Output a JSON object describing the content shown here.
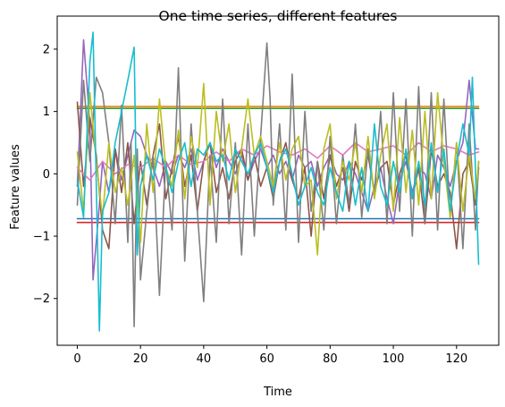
{
  "chart_data": {
    "type": "line",
    "title": "One time series, different features",
    "xlabel": "Time",
    "ylabel": "Feature values",
    "xlim": [
      -6.35,
      133.35
    ],
    "ylim": [
      -2.75,
      2.53
    ],
    "xticks": [
      0,
      20,
      40,
      60,
      80,
      100,
      120
    ],
    "yticks": [
      -2,
      -1,
      0,
      1,
      2
    ],
    "xtick_labels": [
      "0",
      "20",
      "40",
      "60",
      "80",
      "100",
      "120"
    ],
    "ytick_labels": [
      "−2",
      "−1",
      "0",
      "1",
      "2"
    ],
    "grid": false,
    "legend": "none",
    "series": [
      {
        "color": "#1f77b4",
        "x": [
          0,
          127
        ],
        "y": [
          -0.72,
          -0.72
        ]
      },
      {
        "color": "#ff7f0e",
        "x": [
          0,
          127
        ],
        "y": [
          1.08,
          1.08
        ]
      },
      {
        "color": "#2ca02c",
        "x": [
          0,
          127
        ],
        "y": [
          1.05,
          1.05
        ]
      },
      {
        "color": "#d62728",
        "x": [
          0,
          127
        ],
        "y": [
          -0.78,
          -0.78
        ]
      },
      {
        "color": "#9467bd",
        "x": [
          0,
          2,
          4,
          5,
          7,
          8,
          10,
          12,
          14,
          16,
          18,
          20,
          22,
          24,
          26,
          28,
          30,
          32,
          34,
          36,
          38,
          40,
          42,
          44,
          46,
          48,
          50,
          52,
          54,
          56,
          58,
          60,
          62,
          64,
          66,
          68,
          70,
          72,
          74,
          76,
          78,
          80,
          82,
          84,
          86,
          88,
          90,
          92,
          94,
          96,
          98,
          100,
          102,
          104,
          106,
          108,
          110,
          112,
          114,
          116,
          118,
          120,
          122,
          124,
          126,
          127
        ],
        "y": [
          -0.2,
          2.15,
          0.8,
          -1.7,
          -0.5,
          0.2,
          -0.3,
          0.4,
          -0.1,
          0.3,
          0.7,
          0.6,
          0.3,
          0.1,
          -0.2,
          0.2,
          0.0,
          0.3,
          0.1,
          0.4,
          -0.1,
          0.2,
          0.5,
          0.1,
          0.4,
          0.2,
          0.0,
          0.3,
          -0.1,
          0.2,
          0.4,
          0.1,
          0.3,
          0.0,
          0.2,
          -0.1,
          0.3,
          0.1,
          0.2,
          -0.2,
          0.1,
          0.3,
          0.0,
          -0.1,
          0.2,
          0.0,
          -0.3,
          -0.6,
          -0.2,
          0.1,
          -0.4,
          -0.8,
          -0.1,
          0.2,
          -0.3,
          0.1,
          0.0,
          -0.4,
          0.3,
          0.1,
          -0.2,
          0.2,
          0.5,
          1.5,
          0.4,
          0.4
        ]
      },
      {
        "color": "#8c564b",
        "x": [
          0,
          2,
          4,
          6,
          8,
          10,
          12,
          14,
          16,
          18,
          20,
          22,
          24,
          26,
          28,
          30,
          32,
          34,
          36,
          38,
          40,
          42,
          44,
          46,
          48,
          50,
          52,
          54,
          56,
          58,
          60,
          62,
          64,
          66,
          68,
          70,
          72,
          74,
          76,
          78,
          80,
          82,
          84,
          86,
          88,
          90,
          92,
          94,
          96,
          98,
          100,
          102,
          104,
          106,
          108,
          110,
          112,
          114,
          116,
          118,
          120,
          122,
          124,
          126,
          127
        ],
        "y": [
          1.15,
          -0.2,
          0.9,
          0.3,
          -0.9,
          -1.2,
          0.4,
          -0.3,
          0.5,
          -0.8,
          0.2,
          -0.5,
          0.3,
          0.8,
          -0.4,
          0.1,
          0.6,
          -0.2,
          0.3,
          -0.6,
          0.2,
          0.5,
          -0.3,
          0.1,
          -0.4,
          0.2,
          0.4,
          -0.1,
          0.3,
          -0.2,
          0.1,
          -0.4,
          0.2,
          0.5,
          -0.1,
          -0.4,
          0.1,
          -1.0,
          0.2,
          -0.4,
          0.3,
          -0.2,
          0.1,
          -0.6,
          0.2,
          -0.1,
          0.3,
          -0.3,
          0.1,
          0.2,
          -0.5,
          0.0,
          0.3,
          -0.4,
          0.1,
          -0.8,
          0.4,
          -0.2,
          0.0,
          -0.3,
          -1.2,
          0.0,
          0.2,
          -0.5,
          0.1
        ]
      },
      {
        "color": "#e377c2",
        "x": [
          0,
          4,
          8,
          12,
          16,
          20,
          24,
          28,
          32,
          36,
          40,
          44,
          48,
          52,
          56,
          60,
          64,
          68,
          72,
          76,
          80,
          84,
          88,
          92,
          96,
          100,
          104,
          108,
          112,
          116,
          120,
          124,
          127
        ],
        "y": [
          0.1,
          -0.1,
          0.2,
          0.0,
          0.15,
          0.1,
          0.25,
          0.1,
          0.3,
          0.15,
          0.2,
          0.35,
          0.2,
          0.4,
          0.3,
          0.45,
          0.35,
          0.3,
          0.4,
          0.25,
          0.45,
          0.3,
          0.5,
          0.35,
          0.4,
          0.45,
          0.3,
          0.5,
          0.35,
          0.45,
          0.4,
          0.3,
          0.35
        ]
      },
      {
        "color": "#7f7f7f",
        "x": [
          0,
          2,
          4,
          6,
          8,
          10,
          12,
          14,
          16,
          17,
          18,
          19,
          20,
          22,
          24,
          26,
          28,
          30,
          32,
          34,
          36,
          38,
          40,
          42,
          44,
          46,
          48,
          50,
          52,
          54,
          56,
          58,
          60,
          61,
          62,
          64,
          66,
          68,
          70,
          72,
          74,
          76,
          78,
          80,
          82,
          84,
          86,
          88,
          90,
          92,
          94,
          96,
          98,
          100,
          102,
          104,
          106,
          108,
          110,
          112,
          114,
          116,
          118,
          120,
          122,
          124,
          126,
          127
        ],
        "y": [
          -0.5,
          1.5,
          0.2,
          1.55,
          1.3,
          0.5,
          -0.8,
          1.1,
          -1.1,
          0.5,
          -2.45,
          0.4,
          -1.7,
          -0.6,
          0.3,
          -1.95,
          0.2,
          -0.9,
          1.7,
          -1.4,
          0.8,
          -0.6,
          -2.05,
          0.3,
          -1.1,
          1.2,
          -0.8,
          0.5,
          -1.3,
          0.8,
          -1.0,
          0.6,
          2.1,
          1.2,
          -0.5,
          0.8,
          -0.9,
          1.6,
          -1.1,
          1.0,
          -0.6,
          0.2,
          -0.9,
          0.6,
          -0.8,
          0.3,
          -0.5,
          0.8,
          -0.7,
          0.4,
          -0.3,
          1.0,
          -0.8,
          1.3,
          -0.6,
          1.2,
          -1.0,
          1.4,
          -0.8,
          1.3,
          -0.9,
          1.2,
          -0.7,
          0.5,
          -1.2,
          0.8,
          -0.9,
          0.2
        ]
      },
      {
        "color": "#bcbd22",
        "x": [
          0,
          2,
          4,
          6,
          8,
          10,
          12,
          14,
          16,
          18,
          20,
          22,
          24,
          26,
          28,
          30,
          32,
          34,
          36,
          38,
          40,
          42,
          44,
          46,
          48,
          50,
          52,
          54,
          56,
          58,
          60,
          62,
          64,
          66,
          68,
          70,
          72,
          74,
          76,
          78,
          80,
          82,
          84,
          86,
          88,
          90,
          92,
          94,
          96,
          98,
          100,
          102,
          104,
          106,
          108,
          110,
          112,
          114,
          116,
          118,
          120,
          122,
          124,
          126,
          127
        ],
        "y": [
          0.35,
          -0.6,
          1.3,
          0.2,
          -0.7,
          0.5,
          -0.3,
          0.1,
          -0.5,
          0.3,
          -1.1,
          0.8,
          -0.3,
          1.2,
          0.1,
          -0.2,
          0.7,
          -0.4,
          0.6,
          0.1,
          1.45,
          -0.5,
          1.0,
          0.2,
          0.8,
          -0.3,
          0.4,
          1.2,
          0.3,
          0.6,
          0.2,
          -0.2,
          0.5,
          -0.1,
          0.4,
          0.6,
          -0.2,
          -0.1,
          -1.3,
          0.4,
          0.8,
          -0.4,
          0.2,
          -0.1,
          0.5,
          -0.3,
          0.6,
          -0.4,
          0.3,
          0.8,
          -0.6,
          0.9,
          -0.3,
          0.7,
          -0.5,
          1.0,
          -0.4,
          1.3,
          0.2,
          -0.7,
          0.5,
          -0.6,
          0.3,
          -0.4,
          0.2
        ]
      },
      {
        "color": "#17becf",
        "x": [
          0,
          2,
          4,
          5,
          7,
          8,
          10,
          12,
          14,
          16,
          18,
          19,
          20,
          22,
          24,
          26,
          28,
          30,
          32,
          34,
          36,
          38,
          40,
          42,
          44,
          46,
          48,
          50,
          52,
          54,
          56,
          58,
          60,
          62,
          64,
          66,
          68,
          70,
          72,
          74,
          76,
          78,
          80,
          82,
          84,
          86,
          88,
          90,
          92,
          94,
          96,
          98,
          100,
          102,
          104,
          106,
          108,
          110,
          112,
          114,
          116,
          118,
          120,
          122,
          124,
          125,
          127
        ],
        "y": [
          -0.1,
          -0.7,
          1.8,
          2.27,
          -2.52,
          -0.6,
          -0.3,
          0.5,
          1.0,
          1.5,
          2.03,
          -1.3,
          -0.2,
          0.3,
          -0.1,
          0.4,
          0.1,
          -0.3,
          0.2,
          0.5,
          -0.2,
          0.4,
          0.3,
          0.5,
          0.2,
          0.3,
          -0.1,
          0.4,
          0.2,
          0.0,
          0.3,
          0.5,
          0.1,
          -0.3,
          0.2,
          0.4,
          0.0,
          -0.5,
          -0.2,
          0.1,
          -0.3,
          -0.5,
          0.1,
          -0.3,
          -0.6,
          0.2,
          -0.5,
          0.1,
          -0.6,
          0.8,
          -0.2,
          -0.5,
          0.2,
          -0.3,
          0.4,
          -0.4,
          0.2,
          -0.5,
          0.5,
          -0.3,
          0.4,
          -0.6,
          0.2,
          0.8,
          0.3,
          1.55,
          -1.45
        ]
      }
    ]
  }
}
